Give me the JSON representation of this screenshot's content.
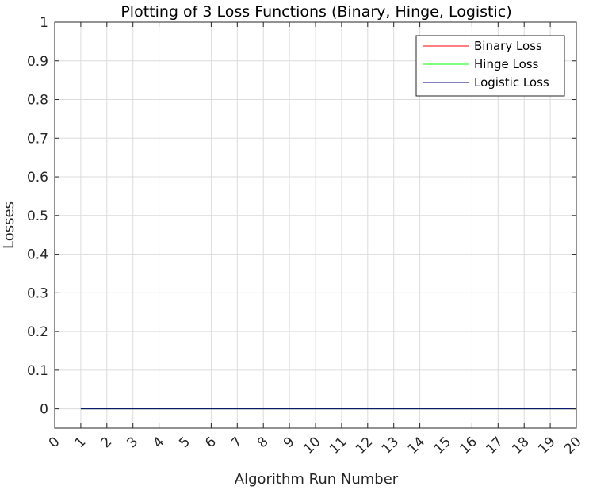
{
  "chart_data": {
    "type": "line",
    "title": "Plotting of 3 Loss Functions (Binary, Hinge, Logistic)",
    "xlabel": "Algorithm Run Number",
    "ylabel": "Losses",
    "xlim": [
      0,
      20
    ],
    "ylim": [
      -0.05,
      1
    ],
    "x_ticks": [
      "0",
      "1",
      "2",
      "3",
      "4",
      "5",
      "6",
      "7",
      "8",
      "9",
      "10",
      "11",
      "12",
      "13",
      "14",
      "15",
      "16",
      "17",
      "18",
      "19",
      "20"
    ],
    "y_ticks": [
      "0",
      "0.1",
      "0.2",
      "0.3",
      "0.4",
      "0.5",
      "0.6",
      "0.7",
      "0.8",
      "0.9",
      "1"
    ],
    "grid": true,
    "legend_position": "top-right",
    "x": [
      1,
      2,
      3,
      4,
      5,
      6,
      7,
      8,
      9,
      10,
      11,
      12,
      13,
      14,
      15,
      16,
      17,
      18,
      19,
      20
    ],
    "series": [
      {
        "name": "Binary Loss",
        "color": "#ff0000",
        "values": [
          0,
          0,
          0,
          0,
          0,
          0,
          0,
          0,
          0,
          0,
          0,
          0,
          0,
          0,
          0,
          0,
          0,
          0,
          0,
          0
        ]
      },
      {
        "name": "Hinge Loss",
        "color": "#00ff00",
        "values": [
          0,
          0,
          0,
          0,
          0,
          0,
          0,
          0,
          0,
          0,
          0,
          0,
          0,
          0,
          0,
          0,
          0,
          0,
          0,
          0
        ]
      },
      {
        "name": "Logistic Loss",
        "color": "#000080",
        "values": [
          0,
          0,
          0,
          0,
          0,
          0,
          0,
          0,
          0,
          0,
          0,
          0,
          0,
          0,
          0,
          0,
          0,
          0,
          0,
          0
        ]
      }
    ]
  }
}
